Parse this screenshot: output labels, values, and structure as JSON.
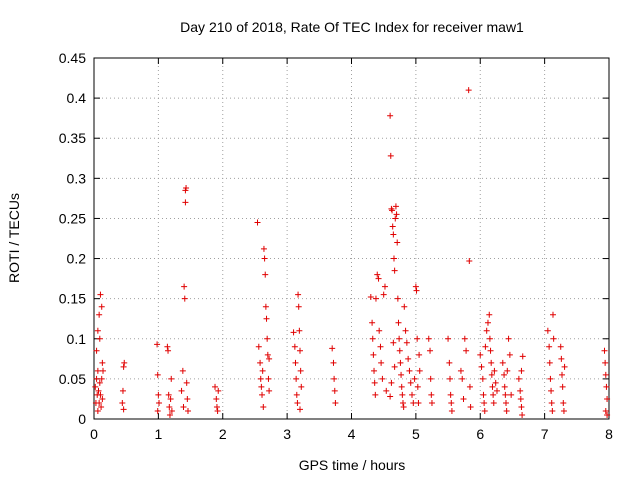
{
  "chart_data": {
    "type": "scatter",
    "title": "Day 210 of 2018, Rate Of TEC Index for receiver maw1",
    "xlabel": "GPS time / hours",
    "ylabel": "ROTI / TECUs",
    "xlim": [
      0,
      8
    ],
    "ylim": [
      0,
      0.45
    ],
    "grid": true,
    "x_ticks": [
      "0",
      "1",
      "2",
      "3",
      "4",
      "5",
      "6",
      "7",
      "8"
    ],
    "y_ticks": [
      "0",
      "0.05",
      "0.1",
      "0.15",
      "0.2",
      "0.25",
      "0.3",
      "0.35",
      "0.4",
      "0.45"
    ],
    "marker": "+",
    "color": "#e00000",
    "series": [
      {
        "name": "ROTI",
        "points": [
          [
            0.02,
            0.04
          ],
          [
            0.03,
            0.02
          ],
          [
            0.04,
            0.05
          ],
          [
            0.05,
            0.03
          ],
          [
            0.06,
            0.01
          ],
          [
            0.06,
            0.06
          ],
          [
            0.07,
            0.035
          ],
          [
            0.08,
            0.02
          ],
          [
            0.09,
            0.045
          ],
          [
            0.1,
            0.03
          ],
          [
            0.11,
            0.015
          ],
          [
            0.12,
            0.05
          ],
          [
            0.13,
            0.025
          ],
          [
            0.04,
            0.085
          ],
          [
            0.06,
            0.11
          ],
          [
            0.08,
            0.13
          ],
          [
            0.1,
            0.155
          ],
          [
            0.12,
            0.14
          ],
          [
            0.13,
            0.07
          ],
          [
            0.14,
            0.06
          ],
          [
            0.09,
            0.1
          ],
          [
            0.44,
            0.02
          ],
          [
            0.45,
            0.035
          ],
          [
            0.46,
            0.065
          ],
          [
            0.47,
            0.07
          ],
          [
            0.46,
            0.012
          ],
          [
            0.98,
            0.093
          ],
          [
            0.99,
            0.055
          ],
          [
            1.0,
            0.03
          ],
          [
            1.01,
            0.02
          ],
          [
            0.99,
            0.01
          ],
          [
            1.14,
            0.09
          ],
          [
            1.15,
            0.085
          ],
          [
            1.16,
            0.03
          ],
          [
            1.17,
            0.015
          ],
          [
            1.18,
            0.005
          ],
          [
            1.19,
            0.025
          ],
          [
            1.2,
            0.05
          ],
          [
            1.21,
            0.01
          ],
          [
            1.36,
            0.035
          ],
          [
            1.38,
            0.06
          ],
          [
            1.39,
            0.015
          ],
          [
            1.4,
            0.165
          ],
          [
            1.41,
            0.15
          ],
          [
            1.42,
            0.27
          ],
          [
            1.42,
            0.285
          ],
          [
            1.43,
            0.288
          ],
          [
            1.44,
            0.045
          ],
          [
            1.45,
            0.025
          ],
          [
            1.46,
            0.01
          ],
          [
            1.88,
            0.04
          ],
          [
            1.9,
            0.025
          ],
          [
            1.91,
            0.015
          ],
          [
            1.92,
            0.01
          ],
          [
            1.93,
            0.035
          ],
          [
            2.54,
            0.245
          ],
          [
            2.56,
            0.09
          ],
          [
            2.58,
            0.07
          ],
          [
            2.59,
            0.05
          ],
          [
            2.6,
            0.04
          ],
          [
            2.61,
            0.03
          ],
          [
            2.62,
            0.06
          ],
          [
            2.63,
            0.015
          ],
          [
            2.64,
            0.212
          ],
          [
            2.65,
            0.2
          ],
          [
            2.66,
            0.18
          ],
          [
            2.67,
            0.14
          ],
          [
            2.68,
            0.125
          ],
          [
            2.69,
            0.1
          ],
          [
            2.7,
            0.08
          ],
          [
            2.71,
            0.05
          ],
          [
            2.72,
            0.035
          ],
          [
            2.72,
            0.075
          ],
          [
            3.1,
            0.108
          ],
          [
            3.12,
            0.09
          ],
          [
            3.13,
            0.07
          ],
          [
            3.14,
            0.05
          ],
          [
            3.15,
            0.03
          ],
          [
            3.16,
            0.02
          ],
          [
            3.17,
            0.155
          ],
          [
            3.18,
            0.14
          ],
          [
            3.19,
            0.11
          ],
          [
            3.2,
            0.085
          ],
          [
            3.21,
            0.06
          ],
          [
            3.22,
            0.04
          ],
          [
            3.2,
            0.012
          ],
          [
            3.7,
            0.088
          ],
          [
            3.72,
            0.07
          ],
          [
            3.73,
            0.05
          ],
          [
            3.74,
            0.035
          ],
          [
            3.75,
            0.02
          ],
          [
            4.3,
            0.152
          ],
          [
            4.32,
            0.12
          ],
          [
            4.33,
            0.1
          ],
          [
            4.34,
            0.08
          ],
          [
            4.35,
            0.06
          ],
          [
            4.36,
            0.045
          ],
          [
            4.37,
            0.03
          ],
          [
            4.38,
            0.15
          ],
          [
            4.4,
            0.18
          ],
          [
            4.42,
            0.175
          ],
          [
            4.43,
            0.11
          ],
          [
            4.45,
            0.09
          ],
          [
            4.46,
            0.07
          ],
          [
            4.48,
            0.05
          ],
          [
            4.5,
            0.155
          ],
          [
            4.52,
            0.165
          ],
          [
            4.54,
            0.035
          ],
          [
            4.6,
            0.378
          ],
          [
            4.61,
            0.328
          ],
          [
            4.62,
            0.262
          ],
          [
            4.63,
            0.26
          ],
          [
            4.64,
            0.24
          ],
          [
            4.65,
            0.23
          ],
          [
            4.66,
            0.2
          ],
          [
            4.67,
            0.185
          ],
          [
            4.68,
            0.25
          ],
          [
            4.69,
            0.265
          ],
          [
            4.7,
            0.255
          ],
          [
            4.71,
            0.22
          ],
          [
            4.72,
            0.15
          ],
          [
            4.73,
            0.12
          ],
          [
            4.74,
            0.1
          ],
          [
            4.75,
            0.085
          ],
          [
            4.76,
            0.07
          ],
          [
            4.77,
            0.055
          ],
          [
            4.78,
            0.04
          ],
          [
            4.79,
            0.03
          ],
          [
            4.8,
            0.02
          ],
          [
            4.81,
            0.015
          ],
          [
            4.82,
            0.14
          ],
          [
            4.84,
            0.11
          ],
          [
            4.86,
            0.095
          ],
          [
            4.88,
            0.075
          ],
          [
            4.9,
            0.06
          ],
          [
            4.92,
            0.045
          ],
          [
            4.94,
            0.03
          ],
          [
            4.96,
            0.02
          ],
          [
            4.98,
            0.05
          ],
          [
            4.65,
            0.095
          ],
          [
            4.67,
            0.065
          ],
          [
            4.62,
            0.045
          ],
          [
            4.6,
            0.028
          ],
          [
            5.0,
            0.165
          ],
          [
            5.01,
            0.16
          ],
          [
            5.02,
            0.1
          ],
          [
            5.03,
            0.04
          ],
          [
            5.04,
            0.02
          ],
          [
            5.05,
            0.08
          ],
          [
            5.06,
            0.06
          ],
          [
            5.2,
            0.1
          ],
          [
            5.22,
            0.085
          ],
          [
            5.23,
            0.05
          ],
          [
            5.24,
            0.03
          ],
          [
            5.25,
            0.02
          ],
          [
            5.5,
            0.1
          ],
          [
            5.52,
            0.07
          ],
          [
            5.53,
            0.05
          ],
          [
            5.54,
            0.03
          ],
          [
            5.55,
            0.02
          ],
          [
            5.56,
            0.01
          ],
          [
            5.7,
            0.06
          ],
          [
            5.72,
            0.05
          ],
          [
            5.74,
            0.025
          ],
          [
            5.76,
            0.1
          ],
          [
            5.78,
            0.085
          ],
          [
            5.82,
            0.41
          ],
          [
            5.83,
            0.197
          ],
          [
            5.84,
            0.04
          ],
          [
            5.85,
            0.015
          ],
          [
            6.0,
            0.08
          ],
          [
            6.02,
            0.065
          ],
          [
            6.04,
            0.05
          ],
          [
            6.05,
            0.03
          ],
          [
            6.06,
            0.02
          ],
          [
            6.07,
            0.01
          ],
          [
            6.08,
            0.09
          ],
          [
            6.1,
            0.11
          ],
          [
            6.12,
            0.12
          ],
          [
            6.14,
            0.13
          ],
          [
            6.15,
            0.1
          ],
          [
            6.16,
            0.085
          ],
          [
            6.17,
            0.07
          ],
          [
            6.18,
            0.055
          ],
          [
            6.19,
            0.04
          ],
          [
            6.2,
            0.03
          ],
          [
            6.21,
            0.02
          ],
          [
            6.22,
            0.06
          ],
          [
            6.24,
            0.045
          ],
          [
            6.26,
            0.035
          ],
          [
            6.35,
            0.07
          ],
          [
            6.37,
            0.055
          ],
          [
            6.38,
            0.04
          ],
          [
            6.39,
            0.03
          ],
          [
            6.4,
            0.02
          ],
          [
            6.41,
            0.01
          ],
          [
            6.42,
            0.06
          ],
          [
            6.44,
            0.1
          ],
          [
            6.46,
            0.08
          ],
          [
            6.48,
            0.03
          ],
          [
            6.6,
            0.05
          ],
          [
            6.62,
            0.035
          ],
          [
            6.63,
            0.025
          ],
          [
            6.64,
            0.015
          ],
          [
            6.65,
            0.005
          ],
          [
            6.66,
            0.078
          ],
          [
            6.64,
            0.06
          ],
          [
            7.05,
            0.11
          ],
          [
            7.07,
            0.09
          ],
          [
            7.08,
            0.07
          ],
          [
            7.09,
            0.05
          ],
          [
            7.1,
            0.035
          ],
          [
            7.11,
            0.02
          ],
          [
            7.12,
            0.01
          ],
          [
            7.13,
            0.13
          ],
          [
            7.14,
            0.1
          ],
          [
            7.25,
            0.09
          ],
          [
            7.26,
            0.075
          ],
          [
            7.27,
            0.055
          ],
          [
            7.28,
            0.04
          ],
          [
            7.29,
            0.02
          ],
          [
            7.3,
            0.01
          ],
          [
            7.31,
            0.065
          ],
          [
            7.93,
            0.085
          ],
          [
            7.94,
            0.07
          ],
          [
            7.95,
            0.055
          ],
          [
            7.96,
            0.04
          ],
          [
            7.97,
            0.025
          ],
          [
            7.95,
            0.01
          ],
          [
            7.97,
            0.005
          ]
        ]
      }
    ]
  }
}
